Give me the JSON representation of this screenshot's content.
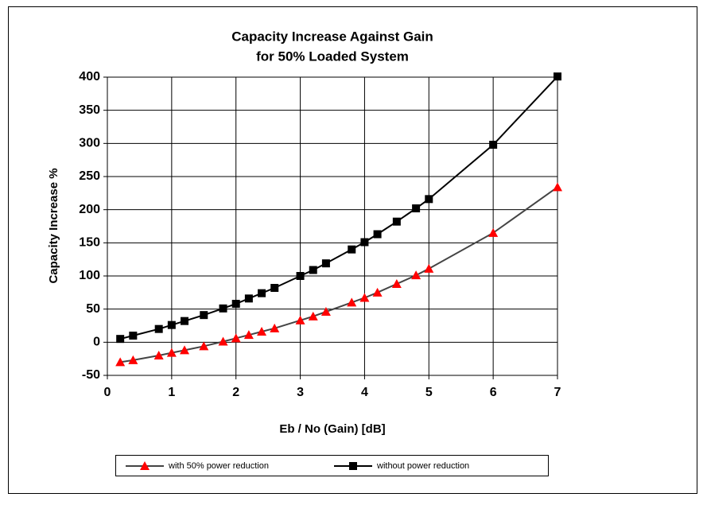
{
  "chart_data": {
    "type": "line",
    "title": [
      "Capacity Increase Against Gain",
      "for 50% Loaded System"
    ],
    "x_label": "Eb / No (Gain) [dB]",
    "y_label": "Capacity Increase %",
    "x": [
      0.2,
      0.4,
      0.8,
      1,
      1.2,
      1.5,
      1.8,
      2,
      2.2,
      2.4,
      2.6,
      3,
      3.2,
      3.4,
      3.8,
      4,
      4.2,
      4.5,
      4.8,
      5,
      6,
      7
    ],
    "series": [
      {
        "name": "with 50% power reduction",
        "color": "#ff0000",
        "marker": "triangle",
        "values": [
          -30,
          -27,
          -20,
          -16,
          -12,
          -6,
          1,
          6,
          11,
          16,
          21,
          33,
          39,
          46,
          60,
          67,
          75,
          88,
          101,
          111,
          165,
          234
        ]
      },
      {
        "name": "without power reduction",
        "color": "#000000",
        "marker": "square",
        "values": [
          5,
          10,
          20,
          26,
          32,
          41,
          51,
          58,
          66,
          74,
          82,
          100,
          109,
          119,
          140,
          151,
          163,
          182,
          202,
          216,
          298,
          401
        ]
      }
    ],
    "xlim": [
      0,
      7
    ],
    "xticks": [
      0,
      1,
      2,
      3,
      4,
      5,
      6,
      7
    ],
    "ylim": [
      -50,
      400
    ],
    "yticks": [
      -50,
      0,
      50,
      100,
      150,
      200,
      250,
      300,
      350,
      400
    ],
    "grid": true,
    "legend": "bottom"
  }
}
